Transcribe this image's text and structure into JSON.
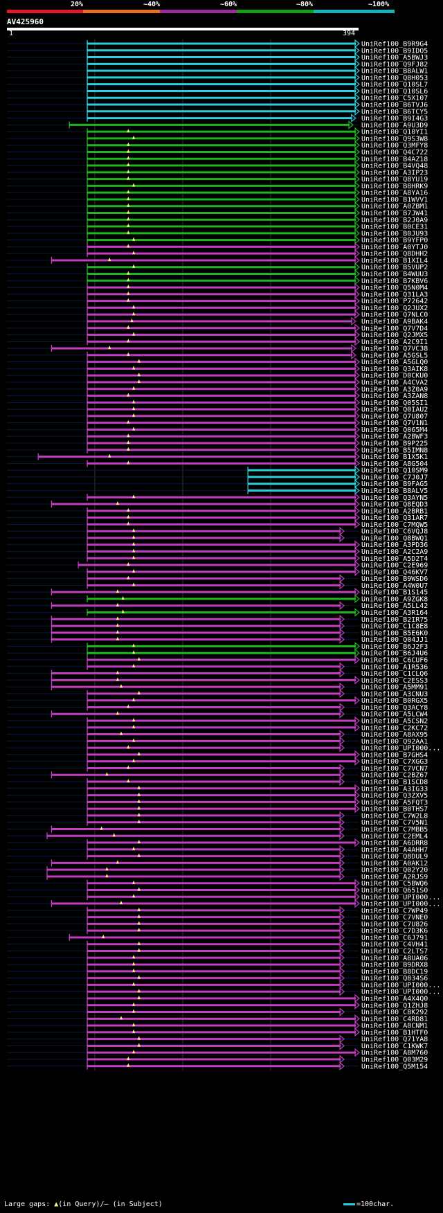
{
  "legend": {
    "labels": [
      "20%",
      "~40%",
      "~60%",
      "~80%",
      "~100%"
    ],
    "colors": [
      "#e3162b",
      "#e8731e",
      "#9b2a9b",
      "#11a011",
      "#17b4bc"
    ]
  },
  "query": {
    "id": "AV425960",
    "start": "1",
    "end": "394"
  },
  "footer": {
    "text_prefix": "Large gaps: ",
    "query_gap_symbol": "▲",
    "text_mid": "(in Query)/",
    "subject_gap_symbol": "–",
    "text_suffix": " (in Subject)",
    "scale_text": "=100char."
  },
  "chart_data": {
    "type": "alignment-overview",
    "query_length": 394,
    "identity_bins": [
      "20%",
      "~40%",
      "~60%",
      "~80%",
      "~100%"
    ],
    "color_by_bin": {
      "p": "#c23ec2",
      "g": "#21b621",
      "c": "#2ad0dc"
    },
    "hits": [
      [
        "UniRef100_B9R9G4",
        "c",
        90,
        394,
        0,
        0,
        null
      ],
      [
        "UniRef100_B9IDO5",
        "c",
        90,
        394,
        0,
        0,
        null
      ],
      [
        "UniRef100_A5BWJ3",
        "c",
        90,
        394,
        0,
        0,
        null
      ],
      [
        "UniRef100_Q9FJ82",
        "c",
        90,
        394,
        0,
        0,
        null
      ],
      [
        "UniRef100_B8ALW1",
        "c",
        90,
        394,
        0,
        0,
        null
      ],
      [
        "UniRef100_Q8H053",
        "c",
        90,
        394,
        0,
        0,
        null
      ],
      [
        "UniRef100_Q10SL7",
        "c",
        90,
        394,
        0,
        0,
        null
      ],
      [
        "UniRef100_Q10SL6",
        "c",
        90,
        394,
        0,
        0,
        null
      ],
      [
        "UniRef100_C5X107",
        "c",
        90,
        394,
        0,
        0,
        null
      ],
      [
        "UniRef100_B6TVJ6",
        "c",
        90,
        394,
        0,
        0,
        null
      ],
      [
        "UniRef100_B6TCY5",
        "c",
        90,
        394,
        0,
        0,
        null
      ],
      [
        "UniRef100_B9I4G3",
        "c",
        90,
        390,
        0,
        0,
        null
      ],
      [
        "UniRef100_A9U3D9",
        "g",
        70,
        387,
        1,
        0,
        null
      ],
      [
        "UniRef100_Q10YI1",
        "g",
        90,
        394,
        0,
        1,
        136
      ],
      [
        "UniRef100_Q9S3W8",
        "g",
        90,
        394,
        0,
        1,
        142
      ],
      [
        "UniRef100_Q3MFY8",
        "g",
        90,
        394,
        0,
        1,
        136
      ],
      [
        "UniRef100_Q4C722",
        "g",
        90,
        394,
        0,
        1,
        136
      ],
      [
        "UniRef100_B4AZ18",
        "g",
        90,
        394,
        0,
        1,
        136
      ],
      [
        "UniRef100_B4VQ48",
        "g",
        90,
        394,
        0,
        1,
        136
      ],
      [
        "UniRef100_A3IP23",
        "g",
        90,
        394,
        0,
        1,
        136
      ],
      [
        "UniRef100_Q8YU19",
        "g",
        90,
        394,
        0,
        1,
        136
      ],
      [
        "UniRef100_B8HRK9",
        "g",
        90,
        394,
        0,
        1,
        142
      ],
      [
        "UniRef100_A8YA16",
        "g",
        90,
        394,
        0,
        1,
        136
      ],
      [
        "UniRef100_B1WVV1",
        "g",
        90,
        394,
        0,
        1,
        136
      ],
      [
        "UniRef100_A0ZBM1",
        "g",
        90,
        394,
        0,
        1,
        136
      ],
      [
        "UniRef100_B7JW41",
        "g",
        90,
        394,
        0,
        1,
        136
      ],
      [
        "UniRef100_B2J0A9",
        "g",
        90,
        394,
        0,
        1,
        136
      ],
      [
        "UniRef100_B0CE31",
        "g",
        90,
        394,
        0,
        1,
        136
      ],
      [
        "UniRef100_B0JU93",
        "g",
        90,
        394,
        0,
        1,
        136
      ],
      [
        "UniRef100_B9YFP0",
        "g",
        90,
        394,
        0,
        1,
        142
      ],
      [
        "UniRef100_A0YTJ0",
        "p",
        90,
        394,
        0,
        1,
        136
      ],
      [
        "UniRef100_Q8DHH2",
        "p",
        90,
        394,
        0,
        1,
        142
      ],
      [
        "UniRef100_B1XIL4",
        "p",
        50,
        394,
        0,
        1,
        115
      ],
      [
        "UniRef100_B5VUP2",
        "g",
        90,
        394,
        0,
        1,
        142
      ],
      [
        "UniRef100_B4WUU3",
        "g",
        90,
        394,
        0,
        1,
        136
      ],
      [
        "UniRef100_B7KBV6",
        "g",
        90,
        394,
        0,
        1,
        136
      ],
      [
        "UniRef100_Q5N0M4",
        "p",
        90,
        394,
        0,
        1,
        136
      ],
      [
        "UniRef100_Q31LA3",
        "p",
        90,
        394,
        0,
        1,
        136
      ],
      [
        "UniRef100_P72642",
        "p",
        90,
        394,
        0,
        1,
        136
      ],
      [
        "UniRef100_Q2JUX2",
        "p",
        90,
        394,
        0,
        1,
        142
      ],
      [
        "UniRef100_Q7NLC0",
        "p",
        90,
        394,
        0,
        1,
        142
      ],
      [
        "UniRef100_A9BAK4",
        "p",
        90,
        390,
        0,
        1,
        140
      ],
      [
        "UniRef100_Q7V7D4",
        "p",
        90,
        394,
        0,
        1,
        136
      ],
      [
        "UniRef100_Q2JMX5",
        "p",
        90,
        394,
        0,
        1,
        142
      ],
      [
        "UniRef100_A2C9I1",
        "p",
        90,
        394,
        0,
        1,
        136
      ],
      [
        "UniRef100_Q7VC38",
        "p",
        50,
        390,
        0,
        1,
        115
      ],
      [
        "UniRef100_A5GSL5",
        "p",
        90,
        390,
        0,
        1,
        136
      ],
      [
        "UniRef100_A5GLQ0",
        "p",
        90,
        394,
        0,
        1,
        148
      ],
      [
        "UniRef100_Q3AIK8",
        "p",
        90,
        394,
        0,
        1,
        142
      ],
      [
        "UniRef100_D0CKU0",
        "p",
        90,
        394,
        0,
        1,
        148
      ],
      [
        "UniRef100_A4CVA2",
        "p",
        90,
        394,
        0,
        1,
        148
      ],
      [
        "UniRef100_A3Z0A9",
        "p",
        90,
        394,
        0,
        1,
        142
      ],
      [
        "UniRef100_A3ZAN8",
        "p",
        90,
        394,
        0,
        1,
        136
      ],
      [
        "UniRef100_Q05SI1",
        "p",
        90,
        394,
        0,
        1,
        142
      ],
      [
        "UniRef100_Q0IAU2",
        "p",
        90,
        394,
        0,
        1,
        142
      ],
      [
        "UniRef100_Q7U807",
        "p",
        90,
        394,
        0,
        1,
        142
      ],
      [
        "UniRef100_Q7V1N1",
        "p",
        90,
        394,
        0,
        1,
        136
      ],
      [
        "UniRef100_Q065M4",
        "p",
        90,
        394,
        0,
        1,
        142
      ],
      [
        "UniRef100_A2BWF3",
        "p",
        90,
        394,
        0,
        1,
        136
      ],
      [
        "UniRef100_B9P225",
        "p",
        90,
        394,
        0,
        1,
        136
      ],
      [
        "UniRef100_B5IMN8",
        "p",
        90,
        394,
        0,
        1,
        136
      ],
      [
        "UniRef100_B1X5K1",
        "p",
        35,
        394,
        0,
        1,
        115
      ],
      [
        "UniRef100_A8G504",
        "p",
        90,
        394,
        0,
        1,
        136
      ],
      [
        "UniRef100_Q10SM9",
        "c",
        270,
        394,
        0,
        0,
        null
      ],
      [
        "UniRef100_C7J0J7",
        "c",
        270,
        394,
        0,
        0,
        null
      ],
      [
        "UniRef100_B9FAG5",
        "c",
        270,
        394,
        0,
        0,
        null
      ],
      [
        "UniRef100_B8ALV5",
        "c",
        270,
        394,
        0,
        0,
        null
      ],
      [
        "UniRef100_Q3AYN5",
        "p",
        90,
        394,
        0,
        1,
        142
      ],
      [
        "UniRef100_Q8EQD3",
        "p",
        50,
        394,
        0,
        1,
        124
      ],
      [
        "UniRef100_A2BRB1",
        "p",
        90,
        394,
        0,
        1,
        136
      ],
      [
        "UniRef100_Q31AR7",
        "p",
        90,
        394,
        0,
        1,
        136
      ],
      [
        "UniRef100_C7MQW5",
        "p",
        90,
        394,
        0,
        1,
        136
      ],
      [
        "UniRef100_C6VQJ8",
        "p",
        90,
        377,
        0,
        1,
        142
      ],
      [
        "UniRef100_Q8BWQ1",
        "p",
        90,
        377,
        0,
        1,
        142
      ],
      [
        "UniRef100_A3PD36",
        "p",
        90,
        394,
        0,
        1,
        142
      ],
      [
        "UniRef100_A2C2A9",
        "p",
        90,
        394,
        0,
        1,
        142
      ],
      [
        "UniRef100_A5D2T4",
        "p",
        90,
        394,
        0,
        1,
        142
      ],
      [
        "UniRef100_C2E969",
        "p",
        80,
        394,
        0,
        1,
        136
      ],
      [
        "UniRef100_Q46KV7",
        "p",
        90,
        394,
        0,
        1,
        142
      ],
      [
        "UniRef100_B9WSD6",
        "p",
        90,
        377,
        0,
        1,
        136
      ],
      [
        "UniRef100_A4W0U7",
        "p",
        90,
        377,
        0,
        1,
        142
      ],
      [
        "UniRef100_B1S145",
        "p",
        50,
        394,
        0,
        1,
        124
      ],
      [
        "UniRef100_A9ZGK8",
        "g",
        90,
        394,
        0,
        1,
        130
      ],
      [
        "UniRef100_A5LL42",
        "p",
        50,
        377,
        0,
        1,
        124
      ],
      [
        "UniRef100_A3R164",
        "g",
        90,
        394,
        0,
        1,
        130
      ],
      [
        "UniRef100_B2IR75",
        "p",
        50,
        377,
        0,
        1,
        124
      ],
      [
        "UniRef100_C1C8E8",
        "p",
        50,
        377,
        0,
        1,
        124
      ],
      [
        "UniRef100_B5E6K0",
        "p",
        50,
        377,
        0,
        1,
        124
      ],
      [
        "UniRef100_Q04JJ1",
        "p",
        50,
        377,
        0,
        1,
        124
      ],
      [
        "UniRef100_B6J2F3",
        "g",
        90,
        394,
        0,
        1,
        142
      ],
      [
        "UniRef100_B6J4U6",
        "g",
        90,
        394,
        0,
        1,
        142
      ],
      [
        "UniRef100_C6CUF6",
        "p",
        90,
        394,
        0,
        1,
        148
      ],
      [
        "UniRef100_A1R536",
        "p",
        90,
        377,
        0,
        1,
        142
      ],
      [
        "UniRef100_C1CLQ6",
        "p",
        50,
        377,
        0,
        1,
        124
      ],
      [
        "UniRef100_C2ESS3",
        "p",
        50,
        394,
        0,
        1,
        124
      ],
      [
        "UniRef100_A5MM91",
        "p",
        50,
        377,
        0,
        1,
        128
      ],
      [
        "UniRef100_A3CNU3",
        "p",
        90,
        377,
        0,
        1,
        148
      ],
      [
        "UniRef100_B0RGX5",
        "p",
        90,
        394,
        0,
        1,
        142
      ],
      [
        "UniRef100_Q3ACY8",
        "p",
        90,
        377,
        0,
        1,
        136
      ],
      [
        "UniRef100_A5LCW4",
        "p",
        50,
        377,
        0,
        1,
        124
      ],
      [
        "UniRef100_A5CSN2",
        "p",
        90,
        394,
        0,
        1,
        142
      ],
      [
        "UniRef100_C2KC72",
        "p",
        90,
        394,
        0,
        1,
        142
      ],
      [
        "UniRef100_A8AX95",
        "p",
        90,
        377,
        0,
        1,
        128
      ],
      [
        "UniRef100_Q92AA1",
        "p",
        90,
        377,
        0,
        1,
        142
      ],
      [
        "UniRef100_UPI000...",
        "p",
        90,
        377,
        0,
        1,
        136
      ],
      [
        "UniRef100_B7GHS4",
        "p",
        90,
        394,
        0,
        1,
        148
      ],
      [
        "UniRef100_C7XGG3",
        "p",
        90,
        394,
        0,
        1,
        142
      ],
      [
        "UniRef100_C7VCN7",
        "p",
        90,
        377,
        0,
        1,
        136
      ],
      [
        "UniRef100_C2BZ67",
        "p",
        50,
        377,
        0,
        1,
        112
      ],
      [
        "UniRef100_B1SCD8",
        "p",
        90,
        377,
        0,
        1,
        136
      ],
      [
        "UniRef100_A3IG33",
        "p",
        90,
        394,
        0,
        1,
        148
      ],
      [
        "UniRef100_Q3ZXV5",
        "p",
        90,
        394,
        0,
        1,
        148
      ],
      [
        "UniRef100_A5FQT3",
        "p",
        90,
        394,
        0,
        1,
        148
      ],
      [
        "UniRef100_B0THS7",
        "p",
        90,
        394,
        0,
        1,
        148
      ],
      [
        "UniRef100_C7W2L8",
        "p",
        90,
        377,
        0,
        1,
        148
      ],
      [
        "UniRef100_C7V5N1",
        "p",
        90,
        377,
        0,
        1,
        148
      ],
      [
        "UniRef100_C7MBB5",
        "p",
        50,
        377,
        0,
        1,
        106
      ],
      [
        "UniRef100_C2EML4",
        "p",
        45,
        377,
        0,
        1,
        120
      ],
      [
        "UniRef100_A6DRR8",
        "p",
        90,
        394,
        0,
        1,
        148
      ],
      [
        "UniRef100_A4AHH7",
        "p",
        90,
        377,
        0,
        1,
        142
      ],
      [
        "UniRef100_Q8DUL9",
        "p",
        90,
        377,
        0,
        1,
        148
      ],
      [
        "UniRef100_A0AK12",
        "p",
        50,
        377,
        0,
        1,
        124
      ],
      [
        "UniRef100_Q02Y20",
        "p",
        45,
        377,
        0,
        1,
        112
      ],
      [
        "UniRef100_A2RJS9",
        "p",
        45,
        377,
        0,
        1,
        112
      ],
      [
        "UniRef100_C5BWQ6",
        "p",
        90,
        394,
        0,
        1,
        142
      ],
      [
        "UniRef100_Q651S0",
        "p",
        90,
        394,
        0,
        1,
        148
      ],
      [
        "UniRef100_UPI000...",
        "p",
        90,
        394,
        0,
        1,
        142
      ],
      [
        "UniRef100_UPI000...",
        "p",
        50,
        394,
        0,
        1,
        128
      ],
      [
        "UniRef100_C7WP49",
        "p",
        90,
        377,
        0,
        1,
        148
      ],
      [
        "UniRef100_C7VNE0",
        "p",
        90,
        377,
        0,
        1,
        148
      ],
      [
        "UniRef100_C7U826",
        "p",
        90,
        377,
        0,
        1,
        148
      ],
      [
        "UniRef100_C7D3K6",
        "p",
        90,
        377,
        0,
        1,
        148
      ],
      [
        "UniRef100_C6J791",
        "p",
        70,
        377,
        0,
        1,
        108
      ],
      [
        "UniRef100_C4VH41",
        "p",
        90,
        377,
        0,
        1,
        148
      ],
      [
        "UniRef100_C2LTS7",
        "p",
        90,
        377,
        0,
        1,
        148
      ],
      [
        "UniRef100_A8UA06",
        "p",
        90,
        377,
        0,
        1,
        142
      ],
      [
        "UniRef100_B9DRX8",
        "p",
        90,
        377,
        0,
        1,
        142
      ],
      [
        "UniRef100_B8DC19",
        "p",
        90,
        377,
        0,
        1,
        142
      ],
      [
        "UniRef100_Q834S6",
        "p",
        90,
        377,
        0,
        1,
        148
      ],
      [
        "UniRef100_UPI000...",
        "p",
        90,
        377,
        0,
        1,
        142
      ],
      [
        "UniRef100_UPI000...",
        "p",
        90,
        377,
        0,
        1,
        148
      ],
      [
        "UniRef100_A4X4Q0",
        "p",
        90,
        394,
        0,
        1,
        148
      ],
      [
        "UniRef100_Q1ZHJ8",
        "p",
        90,
        394,
        0,
        1,
        142
      ],
      [
        "UniRef100_C8K292",
        "p",
        90,
        377,
        0,
        1,
        142
      ],
      [
        "UniRef100_C4RD81",
        "p",
        90,
        394,
        0,
        1,
        128
      ],
      [
        "UniRef100_A8CNM1",
        "p",
        90,
        394,
        0,
        1,
        142
      ],
      [
        "UniRef100_B1HTF0",
        "p",
        90,
        394,
        0,
        1,
        142
      ],
      [
        "UniRef100_Q71YA8",
        "p",
        90,
        377,
        0,
        1,
        148
      ],
      [
        "UniRef100_C1KWK7",
        "p",
        90,
        377,
        0,
        1,
        148
      ],
      [
        "UniRef100_A8M760",
        "p",
        90,
        394,
        0,
        1,
        142
      ],
      [
        "UniRef100_Q03M29",
        "p",
        90,
        377,
        0,
        1,
        136
      ],
      [
        "UniRef100_Q5M154",
        "p",
        90,
        377,
        0,
        1,
        136
      ]
    ]
  }
}
